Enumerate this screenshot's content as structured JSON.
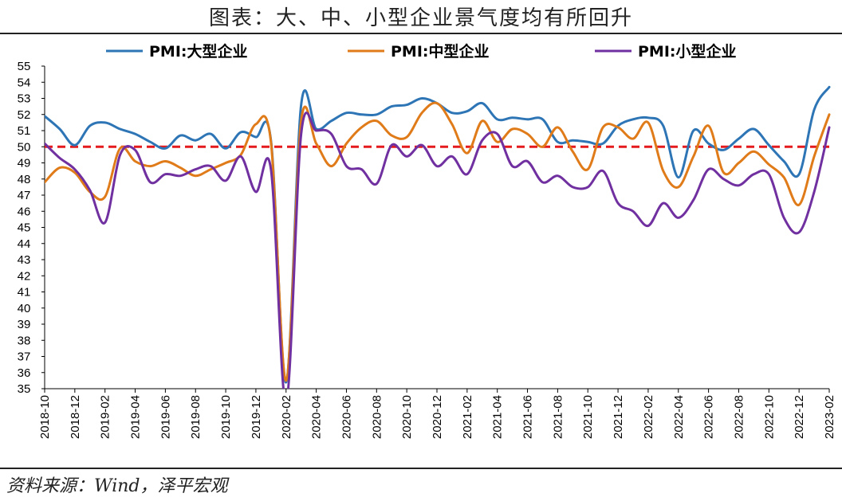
{
  "title": "图表：大、中、小型企业景气度均有所回升",
  "source": "资料来源：Wind，泽平宏观",
  "chart_data": {
    "type": "line",
    "ylim": [
      35,
      55
    ],
    "ytick_step": 1,
    "reference_line": {
      "value": 50,
      "color": "#e41a1c",
      "style": "dashed"
    },
    "x": [
      "2018-10",
      "2018-11",
      "2018-12",
      "2019-01",
      "2019-02",
      "2019-03",
      "2019-04",
      "2019-05",
      "2019-06",
      "2019-07",
      "2019-08",
      "2019-09",
      "2019-10",
      "2019-11",
      "2019-12",
      "2020-01",
      "2020-02",
      "2020-03",
      "2020-04",
      "2020-05",
      "2020-06",
      "2020-07",
      "2020-08",
      "2020-09",
      "2020-10",
      "2020-11",
      "2020-12",
      "2021-01",
      "2021-02",
      "2021-03",
      "2021-04",
      "2021-05",
      "2021-06",
      "2021-07",
      "2021-08",
      "2021-09",
      "2021-10",
      "2021-11",
      "2021-12",
      "2022-01",
      "2022-02",
      "2022-03",
      "2022-04",
      "2022-05",
      "2022-06",
      "2022-07",
      "2022-08",
      "2022-09",
      "2022-10",
      "2022-11",
      "2022-12",
      "2023-01",
      "2023-02"
    ],
    "x_tick_labels": [
      "2018-10",
      "2018-12",
      "2019-02",
      "2019-04",
      "2019-06",
      "2019-08",
      "2019-10",
      "2019-12",
      "2020-02",
      "2020-04",
      "2020-06",
      "2020-08",
      "2020-10",
      "2020-12",
      "2021-02",
      "2021-04",
      "2021-06",
      "2021-08",
      "2021-10",
      "2021-12",
      "2022-02",
      "2022-04",
      "2022-06",
      "2022-08",
      "2022-10",
      "2022-12",
      "2023-02"
    ],
    "series": [
      {
        "name": "PMI:大型企业",
        "color": "#2e75b6",
        "values": [
          51.9,
          51.1,
          50.1,
          51.3,
          51.5,
          51.1,
          50.8,
          50.3,
          49.9,
          50.7,
          50.4,
          50.8,
          49.9,
          50.9,
          50.6,
          50.4,
          35.4,
          52.6,
          51.1,
          51.6,
          52.1,
          52.0,
          52.0,
          52.5,
          52.6,
          53.0,
          52.7,
          52.1,
          52.2,
          52.7,
          51.7,
          51.8,
          51.7,
          51.7,
          50.3,
          50.4,
          50.3,
          50.2,
          51.3,
          51.7,
          51.8,
          51.3,
          48.1,
          51.0,
          50.2,
          49.8,
          50.5,
          51.1,
          50.1,
          49.1,
          48.3,
          52.3,
          53.7
        ]
      },
      {
        "name": "PMI:中型企业",
        "color": "#e07b1a",
        "values": [
          47.8,
          48.7,
          48.4,
          47.2,
          46.9,
          49.9,
          49.1,
          48.8,
          49.1,
          48.7,
          48.2,
          48.6,
          49.0,
          49.5,
          51.4,
          50.3,
          35.5,
          51.6,
          50.2,
          48.8,
          50.2,
          51.2,
          51.6,
          50.7,
          50.6,
          52.1,
          52.7,
          51.4,
          49.6,
          51.6,
          50.3,
          51.1,
          50.8,
          50.0,
          51.2,
          49.7,
          48.6,
          51.2,
          51.2,
          50.5,
          51.5,
          48.5,
          47.5,
          49.4,
          51.3,
          48.4,
          49.0,
          49.7,
          48.9,
          48.1,
          46.4,
          49.4,
          52.0
        ]
      },
      {
        "name": "PMI:小型企业",
        "color": "#7030a0",
        "values": [
          50.2,
          49.3,
          48.6,
          47.3,
          45.3,
          49.5,
          49.8,
          47.8,
          48.3,
          48.2,
          48.6,
          48.8,
          47.9,
          49.4,
          47.2,
          48.6,
          34.1,
          50.8,
          51.0,
          50.8,
          48.8,
          48.6,
          47.7,
          50.1,
          49.4,
          50.1,
          48.8,
          49.4,
          48.3,
          50.4,
          50.8,
          48.8,
          49.1,
          47.8,
          48.2,
          47.5,
          47.5,
          48.5,
          46.5,
          46.0,
          45.1,
          46.5,
          45.6,
          46.7,
          48.6,
          48.0,
          47.6,
          48.3,
          48.3,
          45.6,
          44.7,
          47.2,
          51.2
        ]
      }
    ]
  }
}
